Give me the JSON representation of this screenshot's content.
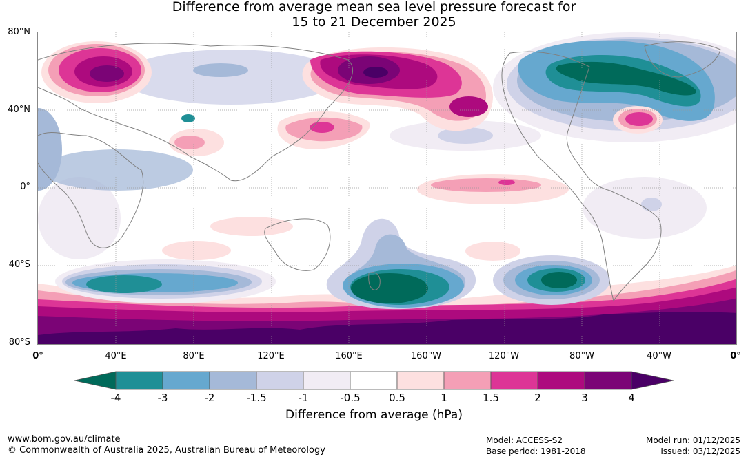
{
  "title": {
    "line1": "Difference from average mean sea level pressure forecast for",
    "line2": "15 to 21 December 2025"
  },
  "latitude_labels": [
    "80°N",
    "40°N",
    "0°",
    "40°S",
    "80°S"
  ],
  "longitude_labels": [
    "0°",
    "40°E",
    "80°E",
    "120°E",
    "160°E",
    "160°W",
    "120°W",
    "80°W",
    "40°W",
    "0°"
  ],
  "legend": {
    "ticks": [
      "-4",
      "-3",
      "-2",
      "-1.5",
      "-1",
      "-0.5",
      "0.5",
      "1",
      "1.5",
      "2",
      "3",
      "4"
    ],
    "colors": [
      "#1f8f96",
      "#66a8cf",
      "#a5b9d8",
      "#cfd2e8",
      "#f1ecf4",
      "#ffffff",
      "#fde0e0",
      "#f49fb6",
      "#dd3596",
      "#ad0a7e",
      "#7b0476"
    ],
    "low_extend_color": "#006a5a",
    "high_extend_color": "#4a0066",
    "unit_label": "Difference from average (hPa)"
  },
  "footer": {
    "website": "www.bom.gov.au/climate",
    "copyright": "© Commonwealth of Australia 2025, Australian Bureau of Meteorology",
    "model": "Model: ACCESS-S2",
    "base_period": "Base period: 1981-2018",
    "model_run": "Model run: 01/12/2025",
    "issued": "Issued: 03/12/2025"
  }
}
